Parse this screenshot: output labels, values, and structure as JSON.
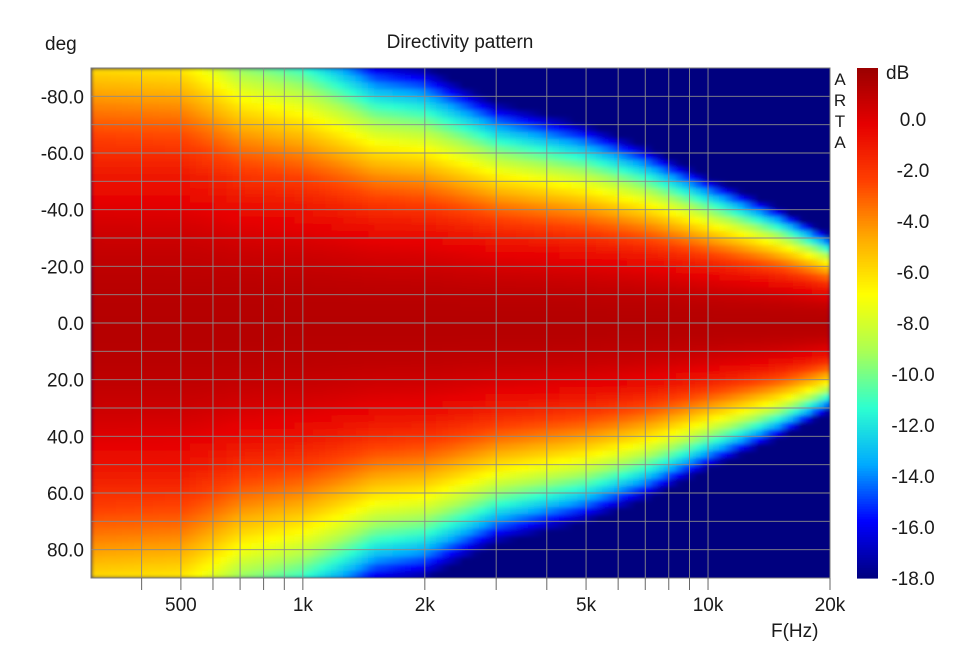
{
  "chart_data": {
    "type": "heatmap",
    "title": "Directivity pattern",
    "ylabel": "deg",
    "xlabel": "F(Hz)",
    "colorbar_label": "dB",
    "watermark": "ARTA",
    "x_scale": "log",
    "xlim": [
      300,
      20000
    ],
    "ylim": [
      -90,
      90
    ],
    "y_inverted": true,
    "x_ticks": [
      {
        "value": 500,
        "label": "500"
      },
      {
        "value": 1000,
        "label": "1k"
      },
      {
        "value": 2000,
        "label": "2k"
      },
      {
        "value": 5000,
        "label": "5k"
      },
      {
        "value": 10000,
        "label": "10k"
      },
      {
        "value": 20000,
        "label": "20k"
      }
    ],
    "y_ticks": [
      {
        "value": -80,
        "label": "-80.0"
      },
      {
        "value": -60,
        "label": "-60.0"
      },
      {
        "value": -40,
        "label": "-40.0"
      },
      {
        "value": -20,
        "label": "-20.0"
      },
      {
        "value": 0,
        "label": "0.0"
      },
      {
        "value": 20,
        "label": "20.0"
      },
      {
        "value": 40,
        "label": "40.0"
      },
      {
        "value": 60,
        "label": "60.0"
      },
      {
        "value": 80,
        "label": "80.0"
      }
    ],
    "colorbar": {
      "range": [
        -18,
        2
      ],
      "ticks": [
        {
          "value": 0,
          "label": "0.0"
        },
        {
          "value": -2,
          "label": "-2.0"
        },
        {
          "value": -4,
          "label": "-4.0"
        },
        {
          "value": -6,
          "label": "-6.0"
        },
        {
          "value": -8,
          "label": "-8.0"
        },
        {
          "value": -10,
          "label": "-10.0"
        },
        {
          "value": -12,
          "label": "-12.0"
        },
        {
          "value": -14,
          "label": "-14.0"
        },
        {
          "value": -16,
          "label": "-16.0"
        },
        {
          "value": -18,
          "label": "-18.0"
        }
      ],
      "colors": [
        "#00007f",
        "#0000ff",
        "#00aaff",
        "#2dffd0",
        "#aaff55",
        "#ffff00",
        "#ffaa00",
        "#ff4000",
        "#e60000",
        "#9a0000"
      ]
    },
    "beamwidth_6dB": [
      {
        "freq_hz": 300,
        "half_angle_deg": 90
      },
      {
        "freq_hz": 500,
        "half_angle_deg": 88
      },
      {
        "freq_hz": 700,
        "half_angle_deg": 75
      },
      {
        "freq_hz": 1000,
        "half_angle_deg": 70
      },
      {
        "freq_hz": 1500,
        "half_angle_deg": 60
      },
      {
        "freq_hz": 2000,
        "half_angle_deg": 58
      },
      {
        "freq_hz": 3000,
        "half_angle_deg": 50
      },
      {
        "freq_hz": 5000,
        "half_angle_deg": 45
      },
      {
        "freq_hz": 7000,
        "half_angle_deg": 40
      },
      {
        "freq_hz": 10000,
        "half_angle_deg": 33
      },
      {
        "freq_hz": 15000,
        "half_angle_deg": 26
      },
      {
        "freq_hz": 20000,
        "half_angle_deg": 20
      }
    ],
    "grid": true
  }
}
